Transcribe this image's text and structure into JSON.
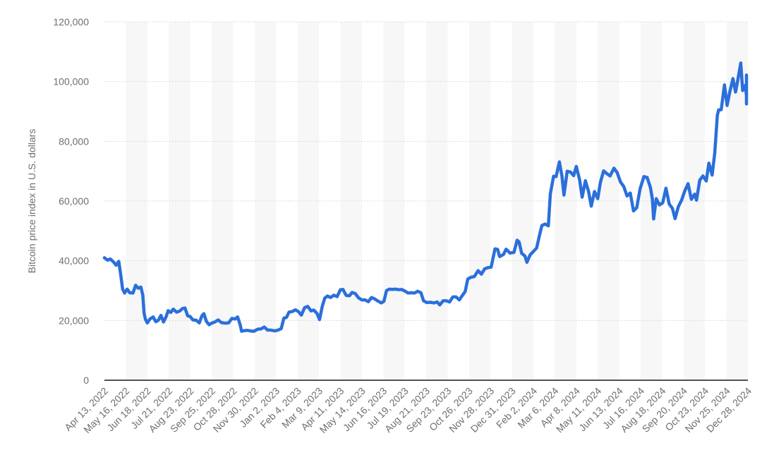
{
  "chart_data": {
    "type": "line",
    "title": "",
    "xlabel": "",
    "ylabel": "Bitcoin price index in U.S. dollars",
    "ylim": [
      0,
      120000
    ],
    "y_ticks": [
      "0",
      "20,000",
      "40,000",
      "60,000",
      "80,000",
      "100,000",
      "120,000"
    ],
    "x_ticks": [
      "Apr 13, 2022",
      "May 16, 2022",
      "Jun 18, 2022",
      "Jul 21, 2022",
      "Aug 23, 2022",
      "Sep 25, 2022",
      "Oct 28, 2022",
      "Nov 30, 2022",
      "Jan 2, 2023",
      "Feb 4, 2023",
      "Mar 9, 2023",
      "Apr 11, 2023",
      "May 14, 2023",
      "Jun 16, 2023",
      "Jul 19, 2023",
      "Aug 21, 2023",
      "Sep 23, 2023",
      "Oct 26, 2023",
      "Nov 28, 2023",
      "Dec 31, 2023",
      "Feb 2, 2024",
      "Mar 6, 2024",
      "Apr 8, 2024",
      "May 11, 2024",
      "Jun 13, 2024",
      "Jul 16, 2024",
      "Aug 18, 2024",
      "Sep 20, 2024",
      "Oct 23, 2024",
      "Nov 25, 2024",
      "Dec 28, 2024"
    ],
    "grid": true,
    "legend": "none",
    "line_color": "#2b6fdb",
    "band_color": "#f7f7f7",
    "grid_color": "#d9d9d9",
    "series": [
      {
        "values": [
          [
            "2022-04-13",
            41000
          ],
          [
            "2022-04-18",
            40200
          ],
          [
            "2022-04-22",
            40600
          ],
          [
            "2022-04-27",
            39600
          ],
          [
            "2022-05-01",
            38500
          ],
          [
            "2022-05-05",
            39800
          ],
          [
            "2022-05-08",
            35500
          ],
          [
            "2022-05-11",
            30500
          ],
          [
            "2022-05-14",
            29200
          ],
          [
            "2022-05-18",
            30500
          ],
          [
            "2022-05-22",
            29300
          ],
          [
            "2022-05-27",
            29200
          ],
          [
            "2022-05-31",
            31800
          ],
          [
            "2022-06-04",
            30800
          ],
          [
            "2022-06-08",
            31200
          ],
          [
            "2022-06-11",
            28500
          ],
          [
            "2022-06-13",
            22500
          ],
          [
            "2022-06-15",
            20500
          ],
          [
            "2022-06-18",
            19200
          ],
          [
            "2022-06-22",
            20500
          ],
          [
            "2022-06-27",
            21200
          ],
          [
            "2022-07-01",
            19600
          ],
          [
            "2022-07-05",
            20100
          ],
          [
            "2022-07-09",
            21700
          ],
          [
            "2022-07-13",
            19500
          ],
          [
            "2022-07-17",
            21300
          ],
          [
            "2022-07-20",
            23300
          ],
          [
            "2022-07-24",
            22700
          ],
          [
            "2022-07-28",
            23800
          ],
          [
            "2022-08-02",
            22800
          ],
          [
            "2022-08-07",
            23200
          ],
          [
            "2022-08-11",
            24000
          ],
          [
            "2022-08-15",
            24200
          ],
          [
            "2022-08-19",
            21600
          ],
          [
            "2022-08-23",
            21300
          ],
          [
            "2022-08-27",
            20200
          ],
          [
            "2022-09-01",
            20100
          ],
          [
            "2022-09-06",
            19200
          ],
          [
            "2022-09-10",
            21600
          ],
          [
            "2022-09-13",
            22300
          ],
          [
            "2022-09-17",
            19700
          ],
          [
            "2022-09-21",
            18600
          ],
          [
            "2022-09-25",
            19100
          ],
          [
            "2022-09-30",
            19500
          ],
          [
            "2022-10-05",
            20200
          ],
          [
            "2022-10-10",
            19300
          ],
          [
            "2022-10-16",
            19100
          ],
          [
            "2022-10-21",
            19200
          ],
          [
            "2022-10-26",
            20700
          ],
          [
            "2022-10-31",
            20500
          ],
          [
            "2022-11-04",
            21200
          ],
          [
            "2022-11-08",
            18500
          ],
          [
            "2022-11-10",
            16400
          ],
          [
            "2022-11-14",
            16600
          ],
          [
            "2022-11-19",
            16700
          ],
          [
            "2022-11-24",
            16500
          ],
          [
            "2022-11-29",
            16400
          ],
          [
            "2022-12-05",
            17100
          ],
          [
            "2022-12-10",
            17200
          ],
          [
            "2022-12-15",
            17800
          ],
          [
            "2022-12-20",
            16800
          ],
          [
            "2022-12-25",
            16800
          ],
          [
            "2022-12-31",
            16500
          ],
          [
            "2023-01-05",
            16800
          ],
          [
            "2023-01-10",
            17300
          ],
          [
            "2023-01-14",
            20800
          ],
          [
            "2023-01-18",
            21000
          ],
          [
            "2023-01-22",
            22800
          ],
          [
            "2023-01-27",
            23000
          ],
          [
            "2023-02-01",
            23600
          ],
          [
            "2023-02-06",
            22900
          ],
          [
            "2023-02-10",
            21800
          ],
          [
            "2023-02-15",
            24300
          ],
          [
            "2023-02-20",
            24700
          ],
          [
            "2023-02-25",
            23200
          ],
          [
            "2023-03-01",
            23500
          ],
          [
            "2023-03-06",
            22400
          ],
          [
            "2023-03-10",
            20300
          ],
          [
            "2023-03-14",
            24600
          ],
          [
            "2023-03-18",
            27500
          ],
          [
            "2023-03-22",
            28200
          ],
          [
            "2023-03-27",
            27700
          ],
          [
            "2023-04-01",
            28500
          ],
          [
            "2023-04-06",
            28000
          ],
          [
            "2023-04-11",
            30300
          ],
          [
            "2023-04-15",
            30400
          ],
          [
            "2023-04-20",
            28400
          ],
          [
            "2023-04-25",
            28300
          ],
          [
            "2023-04-29",
            29400
          ],
          [
            "2023-05-04",
            29000
          ],
          [
            "2023-05-09",
            27600
          ],
          [
            "2023-05-14",
            26900
          ],
          [
            "2023-05-19",
            26900
          ],
          [
            "2023-05-24",
            26300
          ],
          [
            "2023-05-29",
            27700
          ],
          [
            "2023-06-03",
            27200
          ],
          [
            "2023-06-08",
            26500
          ],
          [
            "2023-06-13",
            25900
          ],
          [
            "2023-06-17",
            26400
          ],
          [
            "2023-06-21",
            30000
          ],
          [
            "2023-06-25",
            30500
          ],
          [
            "2023-06-30",
            30400
          ],
          [
            "2023-07-05",
            30500
          ],
          [
            "2023-07-10",
            30300
          ],
          [
            "2023-07-14",
            30400
          ],
          [
            "2023-07-19",
            29900
          ],
          [
            "2023-07-24",
            29200
          ],
          [
            "2023-07-29",
            29300
          ],
          [
            "2023-08-03",
            29200
          ],
          [
            "2023-08-08",
            29800
          ],
          [
            "2023-08-13",
            29300
          ],
          [
            "2023-08-17",
            26600
          ],
          [
            "2023-08-22",
            26000
          ],
          [
            "2023-08-28",
            26100
          ],
          [
            "2023-09-02",
            25900
          ],
          [
            "2023-09-07",
            26200
          ],
          [
            "2023-09-11",
            25200
          ],
          [
            "2023-09-16",
            26600
          ],
          [
            "2023-09-21",
            26600
          ],
          [
            "2023-09-26",
            26200
          ],
          [
            "2023-10-01",
            27900
          ],
          [
            "2023-10-06",
            27900
          ],
          [
            "2023-10-11",
            26900
          ],
          [
            "2023-10-16",
            28500
          ],
          [
            "2023-10-20",
            29700
          ],
          [
            "2023-10-24",
            33900
          ],
          [
            "2023-10-29",
            34500
          ],
          [
            "2023-11-03",
            34700
          ],
          [
            "2023-11-09",
            36700
          ],
          [
            "2023-11-14",
            35500
          ],
          [
            "2023-11-19",
            37300
          ],
          [
            "2023-11-24",
            37700
          ],
          [
            "2023-11-29",
            37900
          ],
          [
            "2023-12-05",
            44000
          ],
          [
            "2023-12-09",
            43800
          ],
          [
            "2023-12-12",
            41400
          ],
          [
            "2023-12-18",
            42100
          ],
          [
            "2023-12-22",
            43900
          ],
          [
            "2023-12-28",
            42600
          ],
          [
            "2024-01-03",
            42800
          ],
          [
            "2024-01-08",
            46900
          ],
          [
            "2024-01-11",
            46300
          ],
          [
            "2024-01-15",
            42500
          ],
          [
            "2024-01-20",
            41600
          ],
          [
            "2024-01-23",
            39500
          ],
          [
            "2024-01-28",
            42000
          ],
          [
            "2024-02-02",
            43100
          ],
          [
            "2024-02-07",
            44300
          ],
          [
            "2024-02-11",
            48200
          ],
          [
            "2024-02-15",
            51800
          ],
          [
            "2024-02-20",
            52300
          ],
          [
            "2024-02-25",
            51700
          ],
          [
            "2024-02-28",
            62400
          ],
          [
            "2024-03-04",
            68300
          ],
          [
            "2024-03-08",
            68200
          ],
          [
            "2024-03-13",
            73100
          ],
          [
            "2024-03-17",
            68300
          ],
          [
            "2024-03-20",
            62000
          ],
          [
            "2024-03-25",
            70000
          ],
          [
            "2024-03-30",
            69700
          ],
          [
            "2024-04-04",
            68500
          ],
          [
            "2024-04-08",
            71600
          ],
          [
            "2024-04-13",
            67200
          ],
          [
            "2024-04-17",
            61300
          ],
          [
            "2024-04-22",
            66800
          ],
          [
            "2024-04-27",
            63100
          ],
          [
            "2024-05-01",
            58300
          ],
          [
            "2024-05-06",
            63200
          ],
          [
            "2024-05-11",
            60800
          ],
          [
            "2024-05-15",
            66200
          ],
          [
            "2024-05-20",
            70100
          ],
          [
            "2024-05-25",
            69200
          ],
          [
            "2024-05-30",
            68400
          ],
          [
            "2024-06-05",
            71000
          ],
          [
            "2024-06-10",
            69500
          ],
          [
            "2024-06-15",
            66400
          ],
          [
            "2024-06-20",
            64900
          ],
          [
            "2024-06-25",
            61700
          ],
          [
            "2024-06-30",
            62700
          ],
          [
            "2024-07-05",
            56700
          ],
          [
            "2024-07-10",
            57800
          ],
          [
            "2024-07-15",
            64000
          ],
          [
            "2024-07-21",
            68200
          ],
          [
            "2024-07-26",
            67900
          ],
          [
            "2024-07-31",
            64600
          ],
          [
            "2024-08-03",
            60700
          ],
          [
            "2024-08-05",
            54000
          ],
          [
            "2024-08-09",
            60800
          ],
          [
            "2024-08-14",
            58700
          ],
          [
            "2024-08-19",
            59400
          ],
          [
            "2024-08-24",
            64300
          ],
          [
            "2024-08-29",
            59000
          ],
          [
            "2024-09-03",
            57500
          ],
          [
            "2024-09-07",
            54100
          ],
          [
            "2024-09-12",
            58100
          ],
          [
            "2024-09-17",
            60300
          ],
          [
            "2024-09-22",
            63400
          ],
          [
            "2024-09-27",
            65800
          ],
          [
            "2024-10-02",
            60600
          ],
          [
            "2024-10-07",
            62300
          ],
          [
            "2024-10-10",
            60300
          ],
          [
            "2024-10-15",
            67000
          ],
          [
            "2024-10-20",
            68400
          ],
          [
            "2024-10-25",
            66700
          ],
          [
            "2024-10-29",
            72700
          ],
          [
            "2024-11-03",
            68700
          ],
          [
            "2024-11-07",
            76000
          ],
          [
            "2024-11-11",
            88700
          ],
          [
            "2024-11-13",
            90500
          ],
          [
            "2024-11-17",
            90600
          ],
          [
            "2024-11-22",
            98900
          ],
          [
            "2024-11-26",
            92000
          ],
          [
            "2024-11-30",
            96400
          ],
          [
            "2024-12-05",
            101000
          ],
          [
            "2024-12-09",
            96500
          ],
          [
            "2024-12-12",
            100000
          ],
          [
            "2024-12-17",
            106200
          ],
          [
            "2024-12-20",
            97000
          ],
          [
            "2024-12-24",
            98700
          ],
          [
            "2024-12-28",
            95300
          ],
          [
            "2024-12-30",
            92500
          ],
          [
            "2025-01-02",
            96900
          ],
          [
            "2025-01-05",
            98300
          ],
          [
            "2025-01-07",
            102200
          ]
        ]
      }
    ]
  }
}
